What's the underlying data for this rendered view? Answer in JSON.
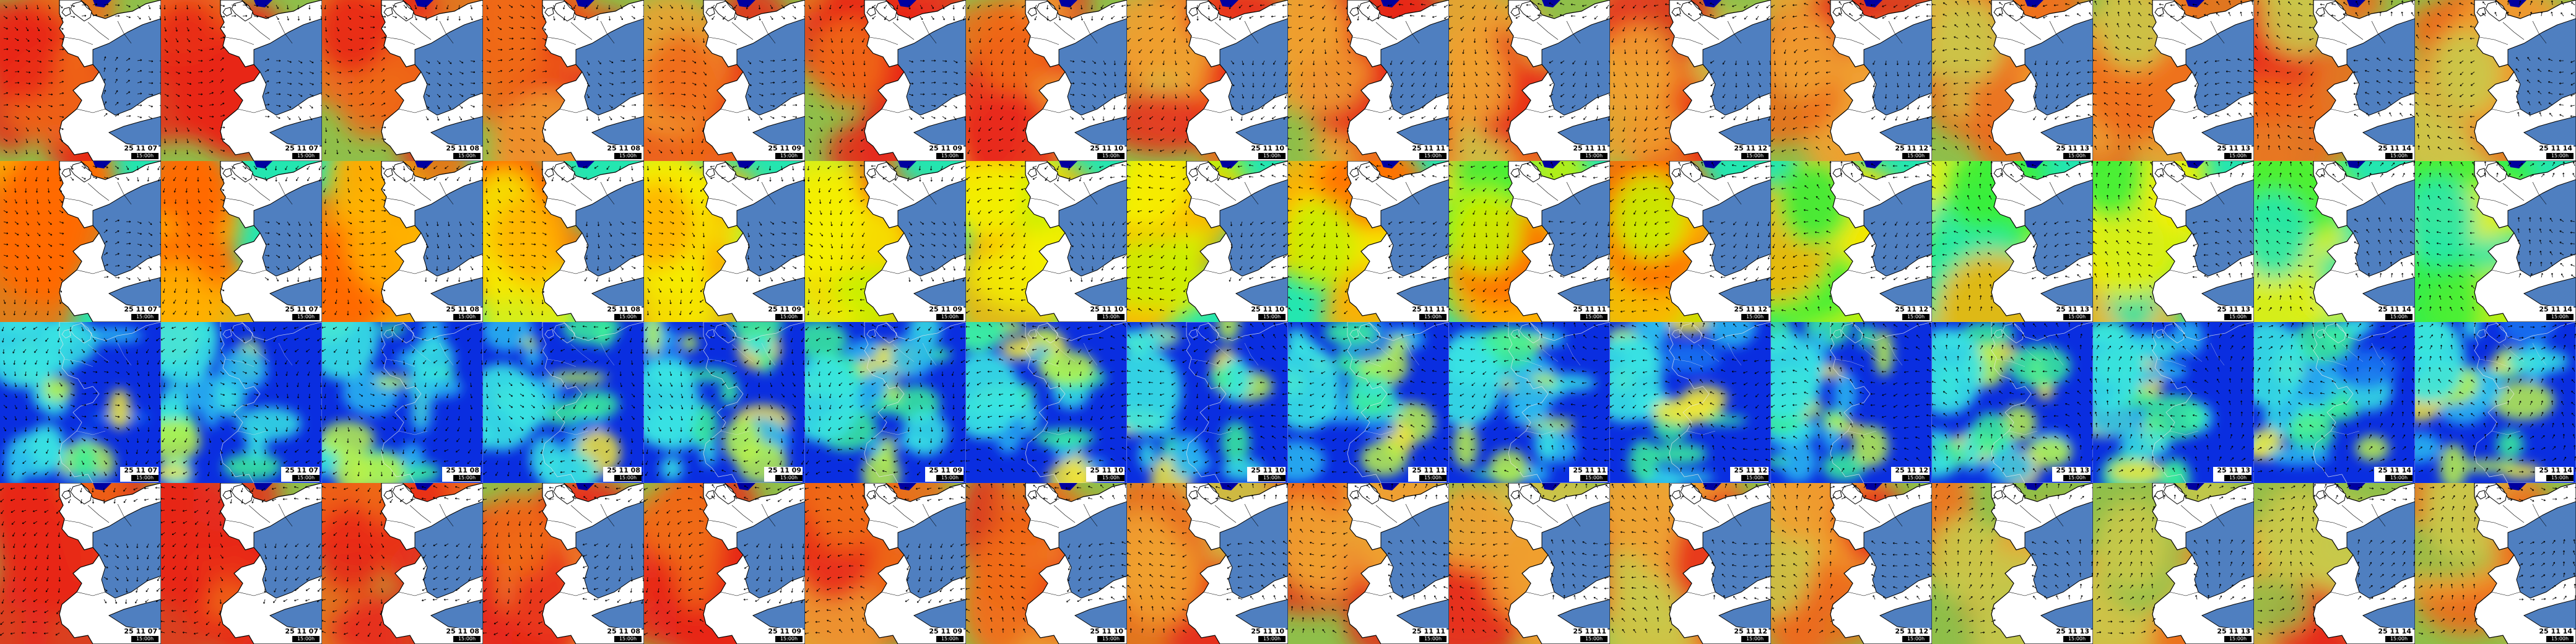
{
  "rows": [
    {
      "id": "row-wave-height",
      "colorscale": [
        "#3f6fb0",
        "#8fbf4a",
        "#c9c94a",
        "#f0a030",
        "#ef6a1a",
        "#e8281a"
      ]
    },
    {
      "id": "row-wave-period",
      "colorscale": [
        "#1fd7ff",
        "#24e6b0",
        "#38f03a",
        "#c8f000",
        "#f5f000",
        "#ffb000",
        "#ff6a00"
      ]
    },
    {
      "id": "row-wind-speed",
      "colorscale": [
        "#0000a8",
        "#0a2ee0",
        "#1a74f0",
        "#2ab8f0",
        "#37e3e3",
        "#3bf09a",
        "#b9f24a",
        "#f2e63a"
      ]
    },
    {
      "id": "row-swell-height",
      "colorscale": [
        "#3f6fb0",
        "#8fbf4a",
        "#c9c94a",
        "#f0a030",
        "#ef6a1a",
        "#e8281a"
      ]
    }
  ],
  "columns": [
    {
      "date": "25 11 07",
      "time": "15:00h"
    },
    {
      "date": "25 11 07",
      "time": "15:00h"
    },
    {
      "date": "25 11 08",
      "time": "15:00h"
    },
    {
      "date": "25 11 08",
      "time": "15:00h"
    },
    {
      "date": "25 11 09",
      "time": "15:00h"
    },
    {
      "date": "25 11 09",
      "time": "15:00h"
    },
    {
      "date": "25 11 10",
      "time": "15:00h"
    },
    {
      "date": "25 11 10",
      "time": "15:00h"
    },
    {
      "date": "25 11 11",
      "time": "15:00h"
    },
    {
      "date": "25 11 11",
      "time": "15:00h"
    },
    {
      "date": "25 11 12",
      "time": "15:00h"
    },
    {
      "date": "25 11 12",
      "time": "15:00h"
    },
    {
      "date": "25 11 13",
      "time": "15:00h"
    },
    {
      "date": "25 11 13",
      "time": "15:00h"
    },
    {
      "date": "25 11 14",
      "time": "15:00h"
    },
    {
      "date": "25 11 14",
      "time": "15:00h"
    }
  ],
  "colors": {
    "land": "#ffffff",
    "sea_mask": "#4f7fc0",
    "coast": "#000000",
    "arrow": "#000000",
    "stamp_bg": "#ffffff",
    "stamp_time_bg": "#000000",
    "stamp_time_fg": "#ffffff"
  }
}
